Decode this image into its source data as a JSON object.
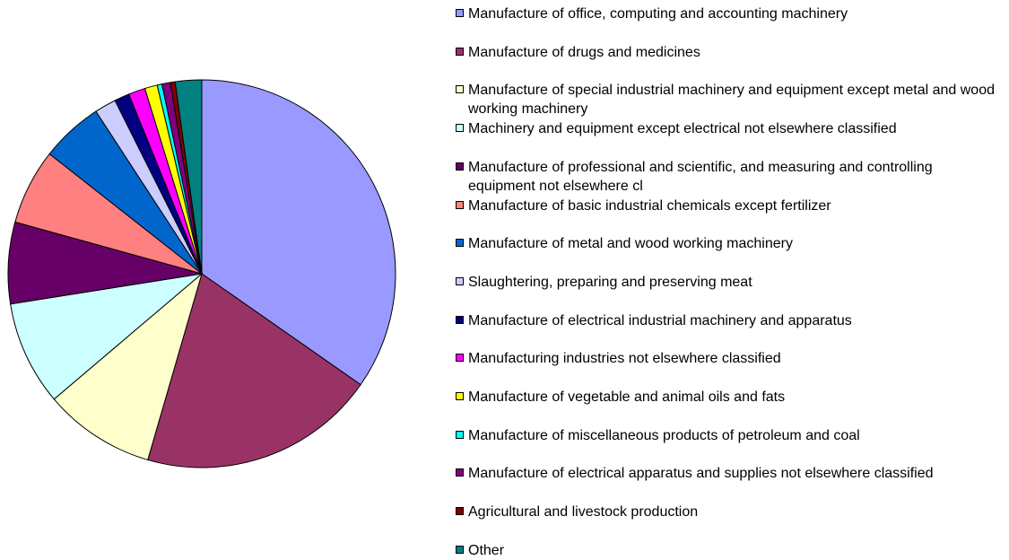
{
  "chart_data": {
    "type": "pie",
    "categories": [
      "Manufacture of office, computing and accounting machinery",
      "Manufacture of drugs and medicines",
      "Manufacture of special industrial machinery and equipment except metal and wood working machinery",
      "Machinery and equipment except electrical not elsewhere classified",
      "Manufacture of professional and scientific, and measuring and controlling equipment not elsewhere cl",
      "Manufacture of basic industrial chemicals except fertilizer",
      "Manufacture of metal and wood working machinery",
      "Slaughtering, preparing and preserving meat",
      "Manufacture of electrical industrial machinery and apparatus",
      "Manufacturing industries not elsewhere classified",
      "Manufacture of vegetable and animal oils and fats",
      "Manufacture of miscellaneous products of petroleum and coal",
      "Manufacture of electrical apparatus and supplies not elsewhere classified",
      "Agricultural and livestock production",
      "Other"
    ],
    "values": [
      34.7,
      19.8,
      9.3,
      8.7,
      6.8,
      6.3,
      5.2,
      1.8,
      1.25,
      1.4,
      1.05,
      0.4,
      0.7,
      0.4,
      2.2
    ],
    "colors": [
      "#9999ff",
      "#993366",
      "#ffffcc",
      "#ccffff",
      "#660066",
      "#ff8080",
      "#0066cc",
      "#ccccff",
      "#000080",
      "#ff00ff",
      "#ffff00",
      "#00ffff",
      "#800080",
      "#800000",
      "#008080"
    ]
  }
}
